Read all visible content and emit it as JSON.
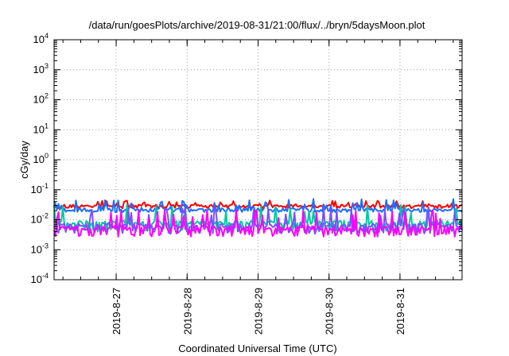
{
  "chart_data": {
    "type": "line",
    "title": "/data/run/goesPlots/archive/2019-08-31/21:00/flux/../bryn/5daysMoon.plot",
    "xlabel": "Coordinated Universal Time (UTC)",
    "ylabel": "cGy/day",
    "y_scale": "log",
    "ylim": [
      0.0001,
      10000
    ],
    "y_ticks": [
      {
        "base": "10",
        "exp": "-4",
        "value": 0.0001
      },
      {
        "base": "10",
        "exp": "-3",
        "value": 0.001
      },
      {
        "base": "10",
        "exp": "-2",
        "value": 0.01
      },
      {
        "base": "10",
        "exp": "-1",
        "value": 0.1
      },
      {
        "base": "10",
        "exp": "0",
        "value": 1
      },
      {
        "base": "10",
        "exp": "1",
        "value": 10
      },
      {
        "base": "10",
        "exp": "2",
        "value": 100
      },
      {
        "base": "10",
        "exp": "3",
        "value": 1000
      },
      {
        "base": "10",
        "exp": "4",
        "value": 10000
      }
    ],
    "xlim": [
      "2019-08-26 03:00",
      "2019-08-31 21:00"
    ],
    "x_ticks": [
      "2019-8-27",
      "2019-8-28",
      "2019-8-29",
      "2019-8-30",
      "2019-8-31"
    ],
    "grid": true,
    "series": [
      {
        "color": "#ff0000",
        "base": 0.028,
        "spike": 0.045
      },
      {
        "color": "#1e6eff",
        "base": 0.021,
        "spike": 0.05
      },
      {
        "color": "#00c8a0",
        "base": 0.008,
        "dip": 0.0045
      },
      {
        "color": "#7a50ff",
        "base": 0.0065,
        "dip": 0.004
      },
      {
        "color": "#ff00ff",
        "base": 0.0052,
        "dip": 0.0032
      }
    ]
  }
}
